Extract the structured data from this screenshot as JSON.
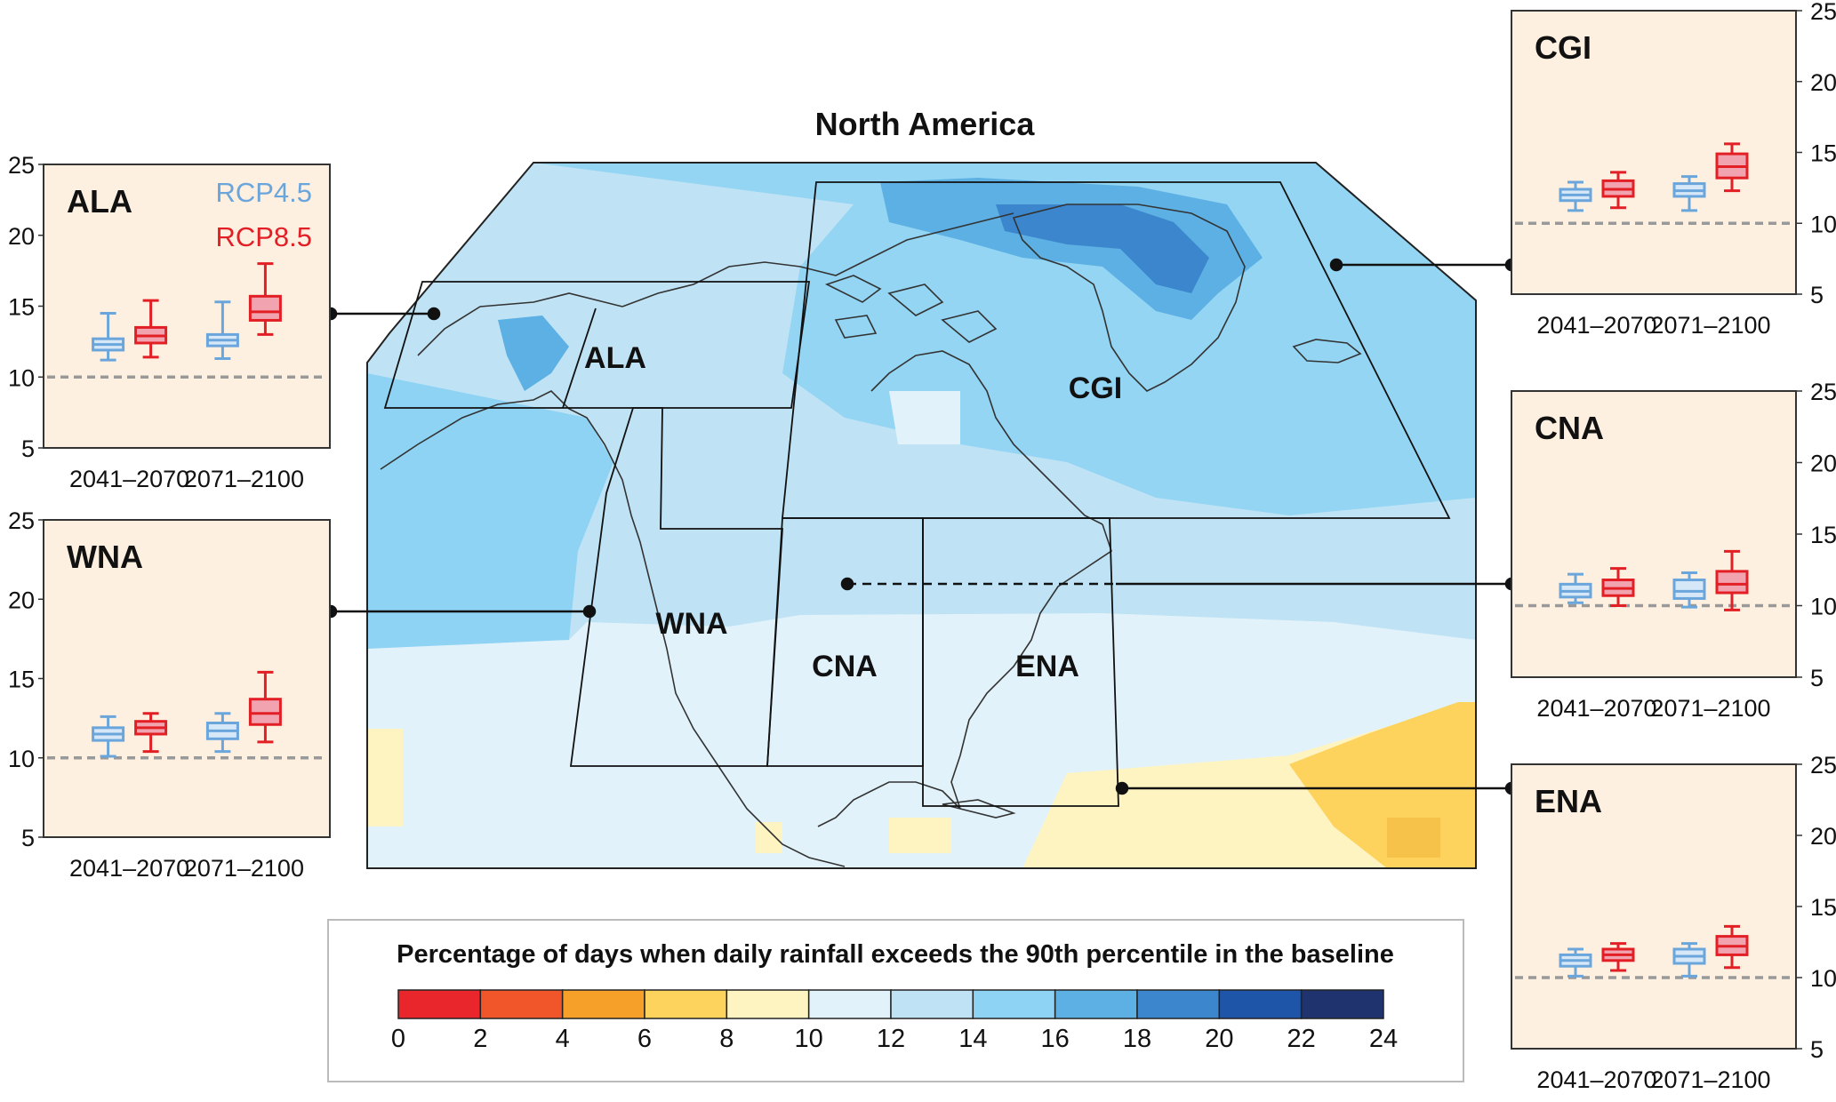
{
  "map": {
    "title": "North America",
    "regions": [
      {
        "code": "ALA"
      },
      {
        "code": "CGI"
      },
      {
        "code": "WNA"
      },
      {
        "code": "CNA"
      },
      {
        "code": "ENA"
      }
    ]
  },
  "colorbar": {
    "title": "Percentage of days when daily rainfall exceeds the 90th percentile in the baseline",
    "ticks": [
      "0",
      "2",
      "4",
      "6",
      "8",
      "10",
      "12",
      "14",
      "16",
      "18",
      "20",
      "22",
      "24"
    ],
    "colors": [
      "#e8262b",
      "#f0562a",
      "#f6a02a",
      "#fdd25d",
      "#fdf4c2",
      "#e2f2fa",
      "#bfe3f5",
      "#8ed3f3",
      "#5cb0e3",
      "#3b86cc",
      "#1f55a8",
      "#1f346e"
    ]
  },
  "chart_data": [
    {
      "type": "box",
      "region": "ALA",
      "categories": [
        "2041–2070",
        "2071–2100"
      ],
      "legend": [
        "RCP4.5",
        "RCP8.5"
      ],
      "ylim": [
        5,
        25
      ],
      "yticks": [
        5,
        10,
        15,
        20,
        25
      ],
      "baseline": 10,
      "series": [
        {
          "name": "RCP4.5",
          "color": "#6aa6dc",
          "boxes": [
            {
              "min": 11.2,
              "q1": 11.9,
              "median": 12.3,
              "q3": 12.7,
              "max": 14.5
            },
            {
              "min": 11.3,
              "q1": 12.2,
              "median": 12.6,
              "q3": 13.0,
              "max": 15.3
            }
          ]
        },
        {
          "name": "RCP8.5",
          "color": "#e31f26",
          "boxes": [
            {
              "min": 11.4,
              "q1": 12.4,
              "median": 12.9,
              "q3": 13.5,
              "max": 15.4
            },
            {
              "min": 13.0,
              "q1": 14.0,
              "median": 14.6,
              "q3": 15.7,
              "max": 18.0
            }
          ]
        }
      ]
    },
    {
      "type": "box",
      "region": "CGI",
      "categories": [
        "2041–2070",
        "2071–2100"
      ],
      "ylim": [
        5,
        25
      ],
      "yticks": [
        5,
        10,
        15,
        20,
        25
      ],
      "baseline": 10,
      "series": [
        {
          "name": "RCP4.5",
          "color": "#6aa6dc",
          "boxes": [
            {
              "min": 10.9,
              "q1": 11.6,
              "median": 12.0,
              "q3": 12.4,
              "max": 12.9
            },
            {
              "min": 10.9,
              "q1": 11.9,
              "median": 12.3,
              "q3": 12.8,
              "max": 13.3
            }
          ]
        },
        {
          "name": "RCP8.5",
          "color": "#e31f26",
          "boxes": [
            {
              "min": 11.1,
              "q1": 11.9,
              "median": 12.4,
              "q3": 13.0,
              "max": 13.6
            },
            {
              "min": 12.3,
              "q1": 13.2,
              "median": 14.0,
              "q3": 14.9,
              "max": 15.6
            }
          ]
        }
      ]
    },
    {
      "type": "box",
      "region": "WNA",
      "categories": [
        "2041–2070",
        "2071–2100"
      ],
      "ylim": [
        5,
        25
      ],
      "yticks": [
        5,
        10,
        15,
        20,
        25
      ],
      "baseline": 10,
      "series": [
        {
          "name": "RCP4.5",
          "color": "#6aa6dc",
          "boxes": [
            {
              "min": 10.1,
              "q1": 11.1,
              "median": 11.5,
              "q3": 11.9,
              "max": 12.6
            },
            {
              "min": 10.4,
              "q1": 11.2,
              "median": 11.7,
              "q3": 12.2,
              "max": 12.8
            }
          ]
        },
        {
          "name": "RCP8.5",
          "color": "#e31f26",
          "boxes": [
            {
              "min": 10.4,
              "q1": 11.5,
              "median": 11.9,
              "q3": 12.3,
              "max": 12.8
            },
            {
              "min": 11.0,
              "q1": 12.1,
              "median": 12.8,
              "q3": 13.7,
              "max": 15.4
            }
          ]
        }
      ]
    },
    {
      "type": "box",
      "region": "CNA",
      "categories": [
        "2041–2070",
        "2071–2100"
      ],
      "ylim": [
        5,
        25
      ],
      "yticks": [
        5,
        10,
        15,
        20,
        25
      ],
      "baseline": 10,
      "series": [
        {
          "name": "RCP4.5",
          "color": "#6aa6dc",
          "boxes": [
            {
              "min": 10.2,
              "q1": 10.6,
              "median": 11.0,
              "q3": 11.5,
              "max": 12.2
            },
            {
              "min": 9.9,
              "q1": 10.5,
              "median": 11.0,
              "q3": 11.8,
              "max": 12.3
            }
          ]
        },
        {
          "name": "RCP8.5",
          "color": "#e31f26",
          "boxes": [
            {
              "min": 10.0,
              "q1": 10.7,
              "median": 11.2,
              "q3": 11.8,
              "max": 12.6
            },
            {
              "min": 9.7,
              "q1": 10.9,
              "median": 11.5,
              "q3": 12.4,
              "max": 13.8
            }
          ]
        }
      ]
    },
    {
      "type": "box",
      "region": "ENA",
      "categories": [
        "2041–2070",
        "2071–2100"
      ],
      "ylim": [
        5,
        25
      ],
      "yticks": [
        5,
        10,
        15,
        20,
        25
      ],
      "baseline": 10,
      "series": [
        {
          "name": "RCP4.5",
          "color": "#6aa6dc",
          "boxes": [
            {
              "min": 10.1,
              "q1": 10.8,
              "median": 11.2,
              "q3": 11.6,
              "max": 12.0
            },
            {
              "min": 10.1,
              "q1": 11.0,
              "median": 11.5,
              "q3": 12.0,
              "max": 12.4
            }
          ]
        },
        {
          "name": "RCP8.5",
          "color": "#e31f26",
          "boxes": [
            {
              "min": 10.5,
              "q1": 11.2,
              "median": 11.6,
              "q3": 12.0,
              "max": 12.4
            },
            {
              "min": 10.7,
              "q1": 11.6,
              "median": 12.2,
              "q3": 12.9,
              "max": 13.6
            }
          ]
        }
      ]
    }
  ]
}
